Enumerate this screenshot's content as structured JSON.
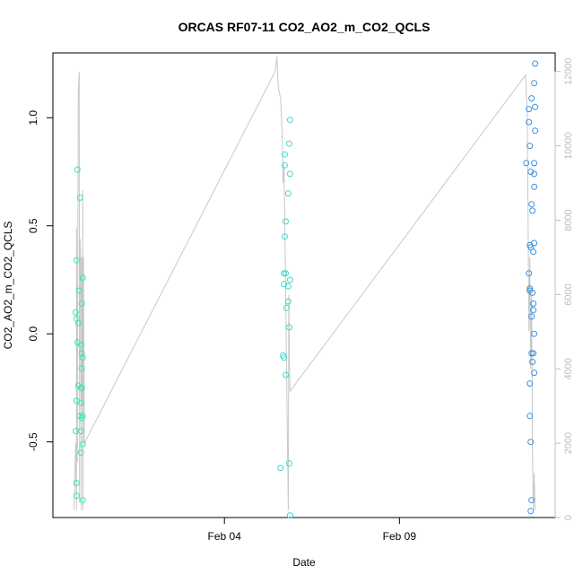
{
  "chart_data": {
    "type": "scatter",
    "title": "ORCAS RF07-11 CO2_AO2_m_CO2_QCLS",
    "xlabel": "Date",
    "ylabel": "CO2_AO2_m_CO2_QCLS",
    "y2label": "",
    "xlim": [
      -9.8,
      18.9
    ],
    "ylim": [
      -0.85,
      1.3
    ],
    "y2lim": [
      0,
      12500
    ],
    "x_ticks": [
      {
        "value": 0,
        "label": "Feb 04"
      },
      {
        "value": 10,
        "label": "Feb 09"
      }
    ],
    "y_ticks": [
      {
        "value": -0.5,
        "label": "-0.5"
      },
      {
        "value": 0.0,
        "label": "0.0"
      },
      {
        "value": 0.5,
        "label": "0.5"
      },
      {
        "value": 1.0,
        "label": "1.0"
      }
    ],
    "y2_ticks": [
      {
        "value": 0,
        "label": "0"
      },
      {
        "value": 2000,
        "label": "2000"
      },
      {
        "value": 4000,
        "label": "4000"
      },
      {
        "value": 6000,
        "label": "6000"
      },
      {
        "value": 8000,
        "label": "8000"
      },
      {
        "value": 10000,
        "label": "10000"
      },
      {
        "value": 12000,
        "label": "12000"
      }
    ],
    "grid": false,
    "colors": {
      "altitude_line": "#c8c8c8",
      "flight1": "#3ce8a8",
      "flight2": "#3cd8d0",
      "flight3": "#3c92e0",
      "axis": "#000000",
      "axis_right": "#bdbdbd"
    },
    "series": [
      {
        "color": "#3ce8a8",
        "points": [
          {
            "x": -8.4,
            "y": 0.76
          },
          {
            "x": -8.25,
            "y": 0.63
          },
          {
            "x": -8.45,
            "y": 0.34
          },
          {
            "x": -8.1,
            "y": 0.26
          },
          {
            "x": -8.3,
            "y": 0.2
          },
          {
            "x": -8.15,
            "y": 0.14
          },
          {
            "x": -8.5,
            "y": 0.1
          },
          {
            "x": -8.45,
            "y": 0.07
          },
          {
            "x": -8.35,
            "y": 0.05
          },
          {
            "x": -8.4,
            "y": -0.04
          },
          {
            "x": -8.2,
            "y": -0.05
          },
          {
            "x": -8.15,
            "y": -0.09
          },
          {
            "x": -8.1,
            "y": -0.11
          },
          {
            "x": -8.15,
            "y": -0.16
          },
          {
            "x": -8.35,
            "y": -0.24
          },
          {
            "x": -8.2,
            "y": -0.25
          },
          {
            "x": -8.15,
            "y": -0.25
          },
          {
            "x": -8.45,
            "y": -0.31
          },
          {
            "x": -8.2,
            "y": -0.32
          },
          {
            "x": -8.25,
            "y": -0.38
          },
          {
            "x": -8.15,
            "y": -0.39
          },
          {
            "x": -8.1,
            "y": -0.38
          },
          {
            "x": -8.5,
            "y": -0.45
          },
          {
            "x": -8.2,
            "y": -0.45
          },
          {
            "x": -8.1,
            "y": -0.51
          },
          {
            "x": -8.2,
            "y": -0.55
          },
          {
            "x": -8.45,
            "y": -0.69
          },
          {
            "x": -8.45,
            "y": -0.75
          },
          {
            "x": -8.1,
            "y": -0.77
          }
        ]
      },
      {
        "color": "#3cd8d0",
        "points": [
          {
            "x": 3.75,
            "y": 0.99
          },
          {
            "x": 3.7,
            "y": 0.88
          },
          {
            "x": 3.45,
            "y": 0.83
          },
          {
            "x": 3.45,
            "y": 0.78
          },
          {
            "x": 3.75,
            "y": 0.74
          },
          {
            "x": 3.65,
            "y": 0.65
          },
          {
            "x": 3.5,
            "y": 0.52
          },
          {
            "x": 3.45,
            "y": 0.45
          },
          {
            "x": 3.4,
            "y": 0.28
          },
          {
            "x": 3.5,
            "y": 0.28
          },
          {
            "x": 3.75,
            "y": 0.25
          },
          {
            "x": 3.4,
            "y": 0.23
          },
          {
            "x": 3.65,
            "y": 0.22
          },
          {
            "x": 3.65,
            "y": 0.15
          },
          {
            "x": 3.55,
            "y": 0.12
          },
          {
            "x": 3.7,
            "y": 0.03
          },
          {
            "x": 3.35,
            "y": -0.1
          },
          {
            "x": 3.4,
            "y": -0.11
          },
          {
            "x": 3.5,
            "y": -0.19
          },
          {
            "x": 3.2,
            "y": -0.62
          },
          {
            "x": 3.7,
            "y": -0.6
          },
          {
            "x": 3.75,
            "y": -0.84
          }
        ]
      },
      {
        "color": "#3c92e0",
        "points": [
          {
            "x": 17.75,
            "y": 1.25
          },
          {
            "x": 17.7,
            "y": 1.16
          },
          {
            "x": 17.55,
            "y": 1.09
          },
          {
            "x": 17.75,
            "y": 1.05
          },
          {
            "x": 17.4,
            "y": 1.04
          },
          {
            "x": 17.4,
            "y": 0.98
          },
          {
            "x": 17.75,
            "y": 0.94
          },
          {
            "x": 17.45,
            "y": 0.87
          },
          {
            "x": 17.25,
            "y": 0.79
          },
          {
            "x": 17.7,
            "y": 0.79
          },
          {
            "x": 17.5,
            "y": 0.75
          },
          {
            "x": 17.7,
            "y": 0.74
          },
          {
            "x": 17.7,
            "y": 0.68
          },
          {
            "x": 17.55,
            "y": 0.6
          },
          {
            "x": 17.6,
            "y": 0.57
          },
          {
            "x": 17.7,
            "y": 0.42
          },
          {
            "x": 17.45,
            "y": 0.41
          },
          {
            "x": 17.5,
            "y": 0.4
          },
          {
            "x": 17.65,
            "y": 0.38
          },
          {
            "x": 17.4,
            "y": 0.28
          },
          {
            "x": 17.45,
            "y": 0.21
          },
          {
            "x": 17.45,
            "y": 0.2
          },
          {
            "x": 17.6,
            "y": 0.19
          },
          {
            "x": 17.65,
            "y": 0.14
          },
          {
            "x": 17.65,
            "y": 0.11
          },
          {
            "x": 17.55,
            "y": 0.08
          },
          {
            "x": 17.7,
            "y": 0.0
          },
          {
            "x": 17.55,
            "y": -0.09
          },
          {
            "x": 17.65,
            "y": -0.09
          },
          {
            "x": 17.6,
            "y": -0.13
          },
          {
            "x": 17.7,
            "y": -0.18
          },
          {
            "x": 17.45,
            "y": -0.23
          },
          {
            "x": 17.45,
            "y": -0.38
          },
          {
            "x": 17.5,
            "y": -0.5
          },
          {
            "x": 17.55,
            "y": -0.77
          },
          {
            "x": 17.5,
            "y": -0.82
          }
        ]
      }
    ],
    "altitude": [
      [
        -8.6,
        200
      ],
      [
        -8.5,
        2000
      ],
      [
        -8.45,
        200
      ],
      [
        -8.45,
        7800
      ],
      [
        -8.4,
        1500
      ],
      [
        -8.38,
        7000
      ],
      [
        -8.35,
        11500
      ],
      [
        -8.3,
        12000
      ],
      [
        -8.28,
        400
      ],
      [
        -8.25,
        7500
      ],
      [
        -8.2,
        6800
      ],
      [
        -8.18,
        200
      ],
      [
        -8.15,
        7000
      ],
      [
        -8.12,
        3000
      ],
      [
        -8.1,
        8800
      ],
      [
        -8.08,
        200
      ],
      [
        -8.05,
        7000
      ],
      [
        -8.0,
        2000
      ],
      [
        2.9,
        12000
      ],
      [
        3.0,
        12400
      ],
      [
        3.05,
        11800
      ],
      [
        3.1,
        11500
      ],
      [
        3.2,
        11300
      ],
      [
        3.3,
        10400
      ],
      [
        3.35,
        9000
      ],
      [
        3.4,
        9500
      ],
      [
        3.45,
        8000
      ],
      [
        3.5,
        6000
      ],
      [
        3.55,
        4000
      ],
      [
        3.6,
        2000
      ],
      [
        3.65,
        200
      ],
      [
        3.68,
        6000
      ],
      [
        3.72,
        4000
      ],
      [
        3.75,
        3400
      ],
      [
        17.2,
        11900
      ],
      [
        17.3,
        11000
      ],
      [
        17.35,
        8000
      ],
      [
        17.4,
        5000
      ],
      [
        17.45,
        7000
      ],
      [
        17.5,
        4000
      ],
      [
        17.55,
        6000
      ],
      [
        17.6,
        2000
      ],
      [
        17.65,
        200
      ],
      [
        17.7,
        1200
      ],
      [
        17.75,
        200
      ]
    ]
  }
}
